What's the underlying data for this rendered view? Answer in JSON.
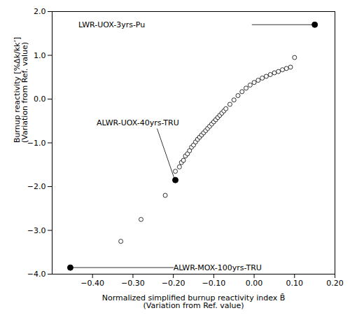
{
  "chart_data": {
    "type": "scatter",
    "x_label": "Normalized simplified burnup reactivity index B̄\n(Variation from Ref. value)",
    "y_label": "Burnup reactivity [%Δk/kk’]\n(Variation from Ref. value)",
    "xlim": [
      -0.5,
      0.2
    ],
    "ylim": [
      -4.0,
      2.0
    ],
    "xticks": [
      -0.4,
      -0.3,
      -0.2,
      -0.1,
      0,
      0.1,
      0.2
    ],
    "yticks": [
      -4,
      -3,
      -2,
      -1,
      0,
      1,
      2
    ],
    "grid": false,
    "series": [
      {
        "marker": "circle-open",
        "color": "black",
        "x": [
          -0.195,
          -0.185,
          -0.18,
          -0.175,
          -0.17,
          -0.165,
          -0.16,
          -0.155,
          -0.15,
          -0.145,
          -0.14,
          -0.135,
          -0.13,
          -0.125,
          -0.12,
          -0.115,
          -0.11,
          -0.105,
          -0.1,
          -0.095,
          -0.09,
          -0.085,
          -0.08,
          -0.075,
          -0.07,
          -0.06,
          -0.05,
          -0.04,
          -0.03,
          -0.02,
          -0.01,
          0.0,
          0.01,
          0.02,
          0.03,
          0.04,
          0.05,
          0.06,
          0.07,
          0.08,
          0.09,
          0.1,
          -0.22,
          -0.28,
          -0.33
        ],
        "values": [
          -1.65,
          -1.55,
          -1.45,
          -1.4,
          -1.3,
          -1.25,
          -1.18,
          -1.1,
          -1.05,
          -0.98,
          -0.92,
          -0.87,
          -0.82,
          -0.77,
          -0.72,
          -0.67,
          -0.62,
          -0.57,
          -0.52,
          -0.47,
          -0.42,
          -0.37,
          -0.32,
          -0.27,
          -0.22,
          -0.12,
          -0.02,
          0.08,
          0.17,
          0.25,
          0.32,
          0.38,
          0.43,
          0.48,
          0.52,
          0.56,
          0.6,
          0.63,
          0.67,
          0.7,
          0.73,
          0.95,
          -2.2,
          -2.75,
          -3.25
        ]
      },
      {
        "marker": "circle",
        "color": "black",
        "x": [
          0.15,
          -0.195,
          -0.455
        ],
        "values": [
          1.7,
          -1.85,
          -3.85
        ]
      }
    ],
    "annotations": [
      {
        "text": "LWR-UOX-3yrs-Pu",
        "x": -0.435,
        "y": 1.7,
        "line": {
          "x": [
            -0.005,
            0.148
          ],
          "y": [
            1.7,
            1.7
          ]
        }
      },
      {
        "text": "ALWR-UOX-40yrs-TRU",
        "x": -0.39,
        "y": -0.55,
        "line": {
          "x": [
            -0.24,
            -0.197
          ],
          "y": [
            -0.68,
            -1.83
          ]
        }
      },
      {
        "text": "ALWR-MOX-100yrs-TRU",
        "x": -0.2,
        "y": -3.85,
        "line": {
          "x": [
            -0.2,
            -0.447
          ],
          "y": [
            -3.85,
            -3.85
          ]
        }
      }
    ]
  }
}
